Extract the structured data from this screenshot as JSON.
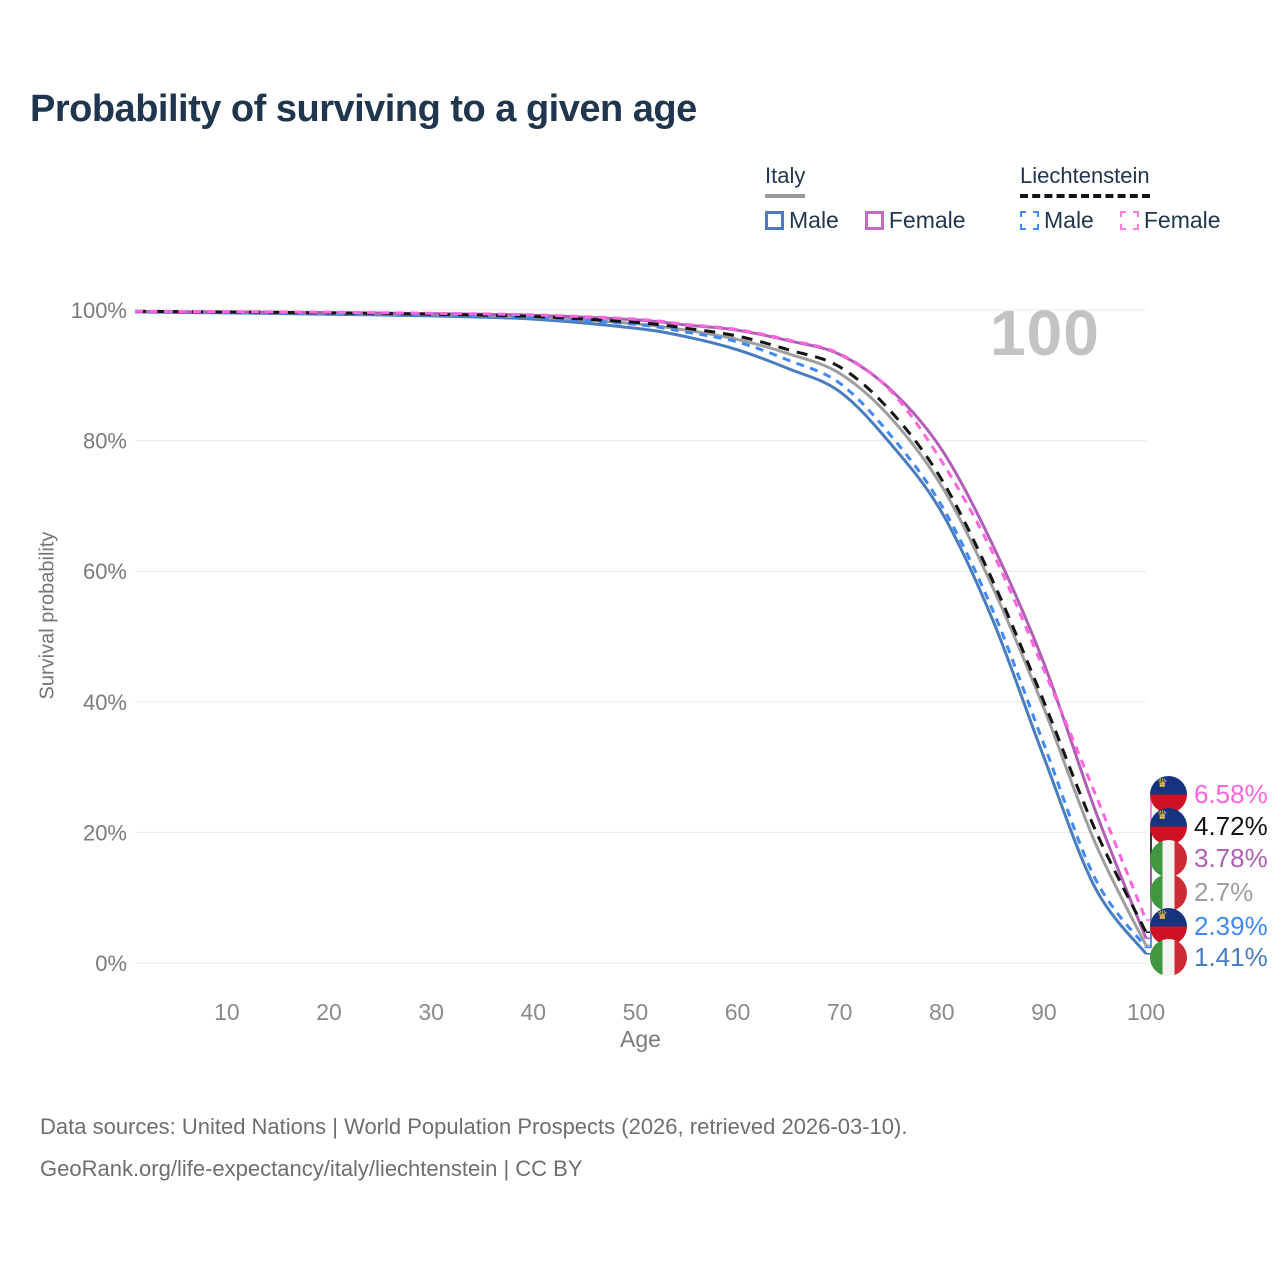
{
  "title": "Probability of surviving to a given age",
  "watermark": "100",
  "icons": {
    "crown": "♛"
  },
  "legend": {
    "groups": [
      {
        "label": "Italy",
        "line_style": "solid",
        "underline_color": "#9a9a9a",
        "items": [
          {
            "label": "Male",
            "color": "#4e79c0"
          },
          {
            "label": "Female",
            "color": "#c06cc0"
          }
        ]
      },
      {
        "label": "Liechtenstein",
        "line_style": "dashed",
        "underline_color": "#141414",
        "items": [
          {
            "label": "Male",
            "color": "#4189f5"
          },
          {
            "label": "Female",
            "color": "#ff7ce0"
          }
        ]
      }
    ]
  },
  "chart_data": {
    "type": "line",
    "title": "Probability of surviving to a given age",
    "xlabel": "Age",
    "ylabel": "Survival probability",
    "xlim": [
      1,
      100
    ],
    "ylim": [
      0,
      100
    ],
    "grid": true,
    "legend_position": "top-right",
    "xticks": [
      10,
      20,
      30,
      40,
      50,
      60,
      70,
      80,
      90,
      100
    ],
    "yticks": [
      "0%",
      "20%",
      "40%",
      "60%",
      "80%",
      "100%"
    ],
    "ytick_values": [
      0,
      20,
      40,
      60,
      80,
      100
    ],
    "x": [
      1,
      10,
      20,
      30,
      40,
      50,
      55,
      60,
      65,
      70,
      75,
      80,
      85,
      90,
      95,
      100
    ],
    "series": [
      {
        "key": "it_m",
        "name": "Italy Male",
        "color": "#4a7dbf",
        "dash": false,
        "values": [
          99.7,
          99.55,
          99.35,
          99.1,
          98.6,
          97.2,
          95.9,
          93.9,
          91.0,
          87.5,
          79.5,
          69.0,
          52.5,
          31.5,
          11.6,
          1.41
        ]
      },
      {
        "key": "it_t",
        "name": "Italy",
        "color": "#9e9e9e",
        "dash": false,
        "values": [
          99.75,
          99.65,
          99.5,
          99.3,
          98.9,
          97.9,
          96.9,
          95.5,
          93.3,
          90.3,
          83.5,
          73.0,
          57.5,
          39.0,
          18.5,
          2.7
        ]
      },
      {
        "key": "it_f",
        "name": "Italy Female",
        "color": "#b05fb5",
        "dash": false,
        "values": [
          99.75,
          99.7,
          99.6,
          99.45,
          99.2,
          98.5,
          97.7,
          96.9,
          95.3,
          93.2,
          87.8,
          78.6,
          64.0,
          45.9,
          23.5,
          3.78
        ]
      },
      {
        "key": "li_m",
        "name": "Liechtenstein Male",
        "color": "#4189f5",
        "dash": true,
        "values": [
          99.7,
          99.6,
          99.45,
          99.25,
          98.85,
          97.8,
          96.6,
          95.1,
          92.3,
          88.8,
          80.8,
          70.0,
          54.0,
          33.5,
          13.0,
          2.39
        ]
      },
      {
        "key": "li_t",
        "name": "Liechtenstein",
        "color": "#141414",
        "dash": true,
        "values": [
          99.8,
          99.7,
          99.55,
          99.35,
          99.0,
          98.1,
          97.2,
          96.0,
          93.9,
          91.3,
          84.5,
          74.0,
          58.5,
          40.0,
          20.5,
          4.72
        ]
      },
      {
        "key": "li_f",
        "name": "Liechtenstein Female",
        "color": "#ff66dd",
        "dash": true,
        "values": [
          99.8,
          99.75,
          99.65,
          99.5,
          99.25,
          98.6,
          97.8,
          97.0,
          95.4,
          93.3,
          87.6,
          76.8,
          62.8,
          44.9,
          26.0,
          6.58
        ]
      }
    ]
  },
  "end_labels": [
    {
      "value": "6.58%",
      "flag": "liechtenstein",
      "series_key": "li_f",
      "color": "#ff66dd"
    },
    {
      "value": "4.72%",
      "flag": "liechtenstein",
      "series_key": "li_t",
      "color": "#141414"
    },
    {
      "value": "3.78%",
      "flag": "italy",
      "series_key": "it_f",
      "color": "#b05fb5"
    },
    {
      "value": "2.7%",
      "flag": "italy",
      "series_key": "it_t",
      "color": "#9e9e9e"
    },
    {
      "value": "2.39%",
      "flag": "liechtenstein",
      "series_key": "li_m",
      "color": "#4189f5"
    },
    {
      "value": "1.41%",
      "flag": "italy",
      "series_key": "it_m",
      "color": "#4a7dbf"
    }
  ],
  "footer": {
    "line1": "Data sources: United Nations | World Population Prospects (2026, retrieved 2026-03-10).",
    "line2": "GeoRank.org/life-expectancy/italy/liechtenstein | CC BY"
  }
}
